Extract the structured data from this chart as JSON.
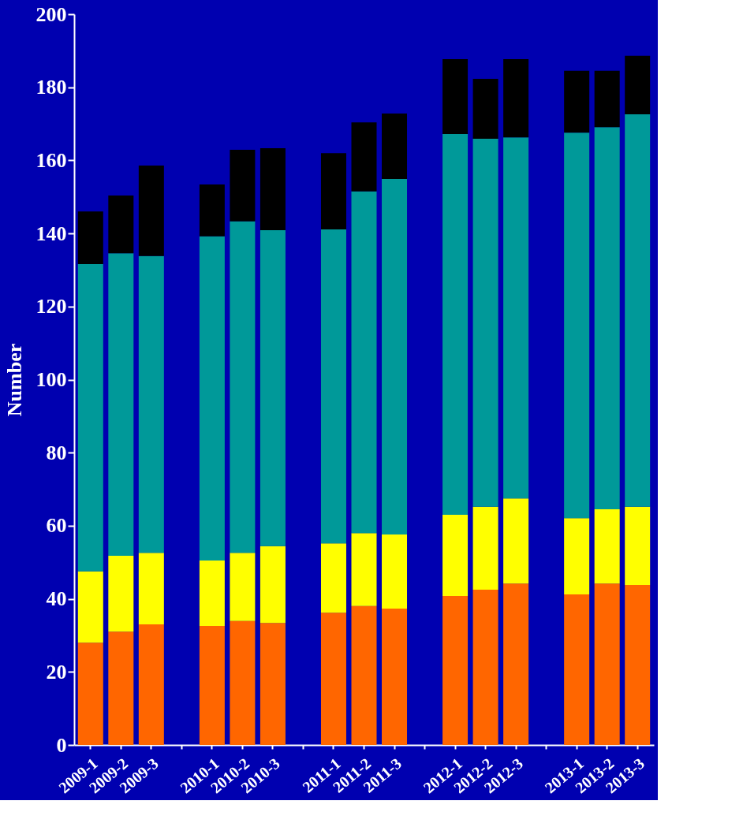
{
  "chart_data": {
    "type": "bar",
    "stacked": true,
    "ylabel": "Number",
    "categories": [
      "2009-1",
      "2009-2",
      "2009-3",
      null,
      "2010-1",
      "2010-2",
      "2010-3",
      null,
      "2011-1",
      "2011-2",
      "2011-3",
      null,
      "2012-1",
      "2012-2",
      "2012-3",
      null,
      "2013-1",
      "2013-2",
      "2013-3"
    ],
    "series": [
      {
        "color": "#ff6600",
        "values": [
          28,
          31,
          33,
          null,
          32.6,
          33.9,
          33.4,
          null,
          36.2,
          38,
          37.3,
          null,
          40.8,
          42.5,
          44.2,
          null,
          41.2,
          44.2,
          43.8
        ]
      },
      {
        "color": "#ffff00",
        "values": [
          19.5,
          20.8,
          19.6,
          null,
          17.9,
          18.7,
          21,
          null,
          19,
          20,
          20.3,
          null,
          22.2,
          22.7,
          23.3,
          null,
          20.9,
          20.3,
          21.4
        ]
      },
      {
        "color": "#009999",
        "values": [
          84.1,
          82.8,
          81.2,
          null,
          88.7,
          90.7,
          86.5,
          null,
          85.9,
          93.5,
          97.3,
          null,
          104.2,
          100.7,
          98.8,
          null,
          105.5,
          104.6,
          107.4
        ]
      },
      {
        "color": "#000000",
        "values": [
          14.4,
          15.8,
          24.8,
          null,
          14.2,
          19.6,
          22.4,
          null,
          20.9,
          18.9,
          17.9,
          null,
          20.5,
          16.4,
          21.4,
          null,
          16.9,
          15.4,
          16
        ]
      }
    ],
    "ylim": [
      0,
      200
    ],
    "yticks": [
      0,
      20,
      40,
      60,
      80,
      100,
      120,
      140,
      160,
      180,
      200
    ],
    "grid": false,
    "legend": false
  }
}
